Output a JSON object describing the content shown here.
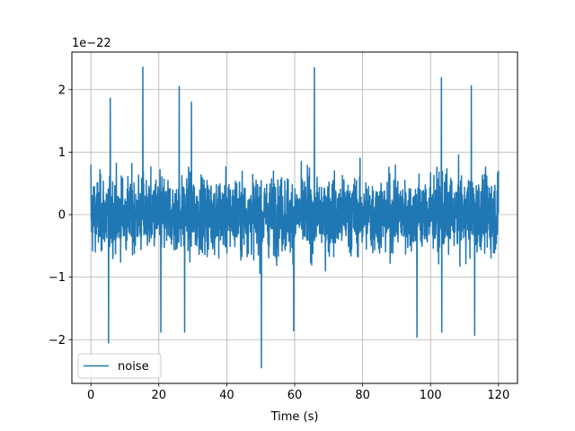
{
  "chart_data": {
    "type": "line",
    "title": "",
    "xlabel": "Time (s)",
    "ylabel": "",
    "offset_text": "1e−22",
    "y_scale_exponent": -22,
    "xlim": [
      -5.6,
      125.6
    ],
    "ylim": [
      -2.7e-22,
      2.6e-22
    ],
    "xticks": [
      0,
      20,
      40,
      60,
      80,
      100,
      120
    ],
    "xtick_labels": [
      "0",
      "20",
      "40",
      "60",
      "80",
      "100",
      "120"
    ],
    "yticks": [
      -2e-22,
      -1e-22,
      0,
      1e-22,
      2e-22
    ],
    "ytick_labels": [
      "−2",
      "−1",
      "0",
      "1",
      "2"
    ],
    "grid": true,
    "legend": {
      "position": "lower left"
    },
    "series": [
      {
        "name": "noise",
        "color": "#1f77b4",
        "sampled": true,
        "x_range": [
          0,
          120
        ],
        "envelope": {
          "typical_abs": 1e-22,
          "max": 2.36e-22,
          "min": -2.45e-22
        },
        "x": [
          0,
          5.2,
          5.7,
          15.3,
          20.6,
          26.0,
          27.6,
          29.6,
          50.2,
          59.7,
          65.8,
          96.0,
          103.2,
          103.3,
          112.0,
          113.0,
          120
        ],
        "values": [
          8e-23,
          -2.05e-22,
          1.86e-22,
          2.36e-22,
          -1.88e-22,
          2.05e-22,
          -1.88e-22,
          1.8e-22,
          -2.45e-22,
          -1.86e-22,
          2.35e-22,
          -1.96e-22,
          2.19e-22,
          -1.88e-22,
          2.06e-22,
          -1.93e-22,
          7e-23
        ]
      }
    ]
  }
}
